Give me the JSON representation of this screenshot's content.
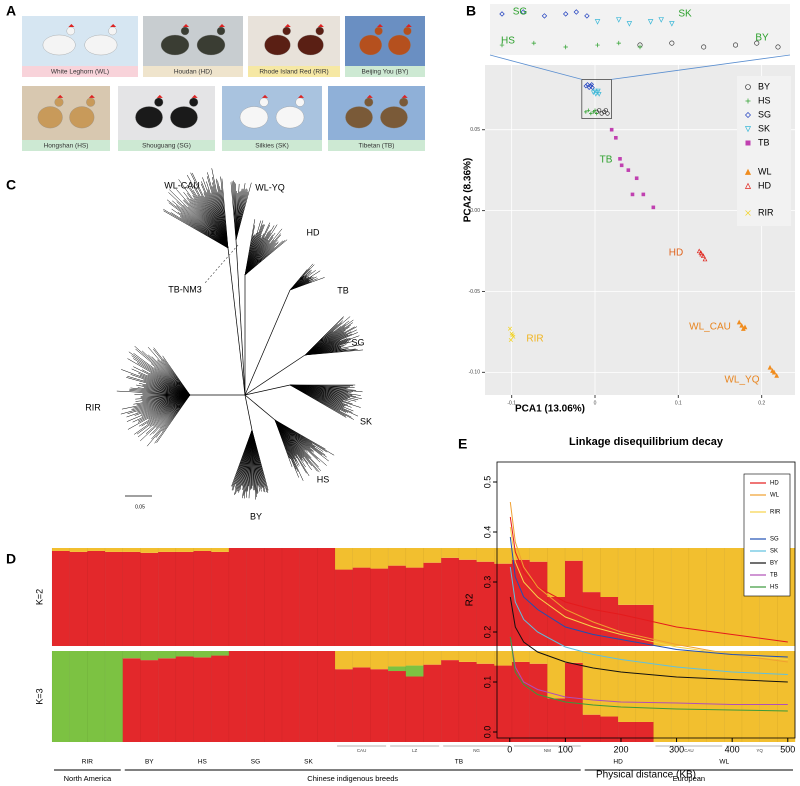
{
  "panels": [
    "A",
    "B",
    "C",
    "D",
    "E"
  ],
  "photos": [
    "White Leghorn (WL)",
    "Houdan (HD)",
    "Rhode Island Red (RIR)",
    "Beijing You (BY)",
    "Hongshan (HS)",
    "Shouguang (SG)",
    "Silkies (SK)",
    "Tibetan (TB)"
  ],
  "tree": {
    "labels": [
      "WL-CAU",
      "WL-YQ",
      "HD",
      "TB",
      "SG",
      "SK",
      "HS",
      "BY",
      "RIR",
      "TB-NM3"
    ],
    "scale": "0.05"
  },
  "chart_data": [
    {
      "type": "scatter",
      "xlabel": "PCA1 (13.06%)",
      "ylabel": "PCA2 (8.36%)",
      "xlim": [
        -0.132,
        0.24
      ],
      "ylim": [
        -0.114,
        0.09
      ],
      "xticks": [
        -0.1,
        0,
        0.1,
        0.2
      ],
      "yticks": [
        0.05,
        {
          "value": 0,
          "label": "0.00"
        },
        -0.05,
        {
          "value": -0.1,
          "label": "-0.10"
        }
      ],
      "grid": true,
      "series": [
        {
          "name": "BY",
          "color": "#222222",
          "marker": "circle",
          "x": [
            0.002,
            0.005,
            0.008,
            0.011,
            0.013,
            0.015
          ],
          "values": [
            0.061,
            0.062,
            0.06,
            0.061,
            0.062,
            0.06
          ]
        },
        {
          "name": "HS",
          "color": "#2ca02c",
          "marker": "plus",
          "x": [
            -0.011,
            -0.008,
            -0.005,
            -0.002,
            0,
            0.002
          ],
          "values": [
            0.061,
            0.062,
            0.06,
            0.061,
            0.062,
            0.06
          ]
        },
        {
          "name": "SG",
          "color": "#1f3fbf",
          "marker": "diamond",
          "x": [
            -0.011,
            -0.009,
            -0.007,
            -0.005,
            -0.004,
            -0.003
          ],
          "values": [
            0.077,
            0.078,
            0.076,
            0.077,
            0.078,
            0.076
          ]
        },
        {
          "name": "SK",
          "color": "#3cb8d8",
          "marker": "triangle-down",
          "x": [
            -0.002,
            0,
            0.001,
            0.003,
            0.004,
            0.005
          ],
          "values": [
            0.073,
            0.074,
            0.072,
            0.073,
            0.074,
            0.072
          ]
        },
        {
          "name": "TB",
          "color": "#c040b0",
          "marker": "square",
          "x": [
            0.02,
            0.025,
            0.03,
            0.032,
            0.04,
            0.045,
            0.05,
            0.058,
            0.07
          ],
          "values": [
            0.05,
            0.045,
            0.032,
            0.028,
            0.025,
            0.01,
            0.02,
            0.01,
            0.002
          ]
        },
        {
          "name": "WL",
          "color": "#f08c1e",
          "marker": "triangle-filled",
          "x": [
            0.173,
            0.176,
            0.178,
            0.18,
            0.21,
            0.213,
            0.215,
            0.218
          ],
          "values": [
            -0.069,
            -0.071,
            -0.073,
            -0.072,
            -0.097,
            -0.099,
            -0.1,
            -0.102
          ]
        },
        {
          "name": "HD",
          "color": "#e0261e",
          "marker": "triangle",
          "x": [
            0.125,
            0.128,
            0.13,
            0.132,
            0.127
          ],
          "values": [
            -0.025,
            -0.027,
            -0.028,
            -0.03,
            -0.026
          ]
        },
        {
          "name": "RIR",
          "color": "#f2d21c",
          "marker": "x",
          "x": [
            -0.102,
            -0.1,
            -0.098,
            -0.101,
            -0.099
          ],
          "values": [
            -0.073,
            -0.076,
            -0.078,
            -0.08,
            -0.077
          ]
        }
      ],
      "annotations": [
        "SG",
        "SK",
        "HS",
        "BY",
        "TB",
        "HD",
        "RIR",
        "WL_CAU",
        "WL_YQ"
      ]
    },
    {
      "type": "bar",
      "stacked": true,
      "rows": [
        {
          "label": "K=2",
          "series": [
            {
              "color": "#e3282b",
              "values": [
                0.97,
                0.96,
                0.97,
                0.96,
                0.96,
                0.95,
                0.96,
                0.96,
                0.97,
                0.96,
                1,
                1,
                1,
                1,
                1,
                1,
                0.78,
                0.8,
                0.79,
                0.82,
                0.8,
                0.85,
                0.9,
                0.88,
                0.86,
                0.84,
                0.88,
                0.86,
                0.5,
                0.87,
                0.55,
                0.5,
                0.42,
                0.42,
                0,
                0,
                0,
                0,
                0,
                0,
                0,
                0
              ]
            },
            {
              "color": "#f2bf2f",
              "values": [
                0.03,
                0.04,
                0.03,
                0.04,
                0.04,
                0.05,
                0.04,
                0.04,
                0.03,
                0.04,
                0,
                0,
                0,
                0,
                0,
                0,
                0.22,
                0.2,
                0.21,
                0.18,
                0.2,
                0.15,
                0.1,
                0.12,
                0.14,
                0.16,
                0.12,
                0.14,
                0.5,
                0.13,
                0.45,
                0.5,
                0.58,
                0.58,
                1,
                1,
                1,
                1,
                1,
                1,
                1,
                1
              ]
            }
          ]
        },
        {
          "label": "K=3",
          "series": [
            {
              "color": "#e3282b",
              "values": [
                0,
                0,
                0,
                0,
                0.92,
                0.9,
                0.92,
                0.94,
                0.93,
                0.95,
                1,
                1,
                1,
                1,
                1,
                1,
                0.8,
                0.82,
                0.8,
                0.78,
                0.72,
                0.85,
                0.9,
                0.88,
                0.86,
                0.84,
                0.88,
                0.86,
                0.48,
                0.87,
                0.3,
                0.28,
                0.22,
                0.22,
                0,
                0,
                0,
                0,
                0,
                0,
                0,
                0
              ]
            },
            {
              "color": "#7cc242",
              "values": [
                1,
                1,
                1,
                1,
                0.08,
                0.1,
                0.08,
                0.06,
                0.07,
                0.05,
                0,
                0,
                0,
                0,
                0,
                0,
                0,
                0,
                0,
                0.05,
                0.12,
                0,
                0,
                0,
                0,
                0,
                0,
                0,
                0,
                0,
                0,
                0,
                0,
                0,
                0,
                0,
                0,
                0,
                0,
                0,
                0,
                0
              ]
            },
            {
              "color": "#f2bf2f",
              "values": [
                0,
                0,
                0,
                0,
                0,
                0,
                0,
                0,
                0,
                0,
                0,
                0,
                0,
                0,
                0,
                0,
                0.2,
                0.18,
                0.2,
                0.17,
                0.16,
                0.15,
                0.1,
                0.12,
                0.14,
                0.16,
                0.12,
                0.14,
                0.52,
                0.13,
                0.7,
                0.72,
                0.78,
                0.78,
                1,
                1,
                1,
                1,
                1,
                1,
                1,
                1
              ]
            }
          ]
        }
      ],
      "categories": [
        "RIR",
        null,
        null,
        null,
        "BY",
        null,
        null,
        "HS",
        null,
        null,
        "SG",
        null,
        null,
        "SK",
        null,
        null,
        "TB",
        null,
        null,
        null,
        null,
        null,
        null,
        null,
        null,
        null,
        null,
        null,
        null,
        null,
        "HD",
        null,
        null,
        null,
        "WL",
        null,
        null,
        null,
        null,
        null,
        null,
        null
      ],
      "subgroups": [
        null,
        null,
        null,
        null,
        null,
        null,
        null,
        null,
        null,
        null,
        null,
        null,
        null,
        null,
        null,
        null,
        "CAU",
        null,
        null,
        "LZ",
        null,
        null,
        "NG",
        null,
        null,
        null,
        "NM",
        null,
        null,
        null,
        null,
        null,
        null,
        null,
        "CAU",
        null,
        null,
        null,
        "YQ",
        null,
        null,
        null
      ],
      "regions": [
        "North America",
        null,
        null,
        null,
        "Chinese indigenous breeds",
        null,
        null,
        null,
        null,
        null,
        null,
        null,
        null,
        null,
        null,
        null,
        null,
        null,
        null,
        null,
        null,
        null,
        null,
        null,
        null,
        null,
        null,
        null,
        null,
        null,
        "European",
        null,
        null,
        null,
        null,
        null,
        null,
        null,
        null,
        null,
        null,
        null
      ]
    },
    {
      "type": "line",
      "title": "Linkage disequilibrium decay",
      "xlabel": "Physical distance (KB)",
      "ylabel": "R2",
      "x": [
        1,
        10,
        25,
        50,
        100,
        150,
        200,
        300,
        400,
        500
      ],
      "xlim": [
        -23,
        513
      ],
      "ylim": [
        -0.012,
        0.54
      ],
      "xticks": [
        0,
        100,
        200,
        300,
        400,
        500
      ],
      "yticks": [
        {
          "value": 0,
          "label": "0.0"
        },
        0.1,
        0.2,
        0.3,
        0.4,
        0.5
      ],
      "series": [
        {
          "name": "HD",
          "color": "#e41a1c",
          "values": [
            0.43,
            0.36,
            0.32,
            0.29,
            0.26,
            0.245,
            0.235,
            0.21,
            0.195,
            0.18
          ]
        },
        {
          "name": "WL",
          "color": "#f0a030",
          "values": [
            0.46,
            0.38,
            0.33,
            0.29,
            0.245,
            0.22,
            0.2,
            0.175,
            0.155,
            0.14
          ]
        },
        {
          "name": "RIR",
          "color": "#f7d34a",
          "values": [
            0.41,
            0.34,
            0.3,
            0.27,
            0.23,
            0.21,
            0.195,
            0.17,
            0.155,
            0.145
          ]
        },
        {
          "name": "SG",
          "color": "#1f4fb4",
          "values": [
            0.39,
            0.31,
            0.27,
            0.245,
            0.21,
            0.195,
            0.185,
            0.165,
            0.155,
            0.15
          ]
        },
        {
          "name": "SK",
          "color": "#5fc0e0",
          "values": [
            0.33,
            0.26,
            0.225,
            0.2,
            0.17,
            0.155,
            0.145,
            0.13,
            0.12,
            0.115
          ]
        },
        {
          "name": "BY",
          "color": "#111111",
          "values": [
            0.27,
            0.21,
            0.18,
            0.16,
            0.14,
            0.128,
            0.12,
            0.11,
            0.105,
            0.1
          ]
        },
        {
          "name": "TB",
          "color": "#b04fb8",
          "values": [
            0.19,
            0.13,
            0.1,
            0.085,
            0.07,
            0.064,
            0.06,
            0.058,
            0.055,
            0.055
          ]
        },
        {
          "name": "HS",
          "color": "#3a9a3a",
          "values": [
            0.19,
            0.12,
            0.095,
            0.075,
            0.06,
            0.054,
            0.05,
            0.046,
            0.044,
            0.042
          ]
        }
      ]
    }
  ]
}
